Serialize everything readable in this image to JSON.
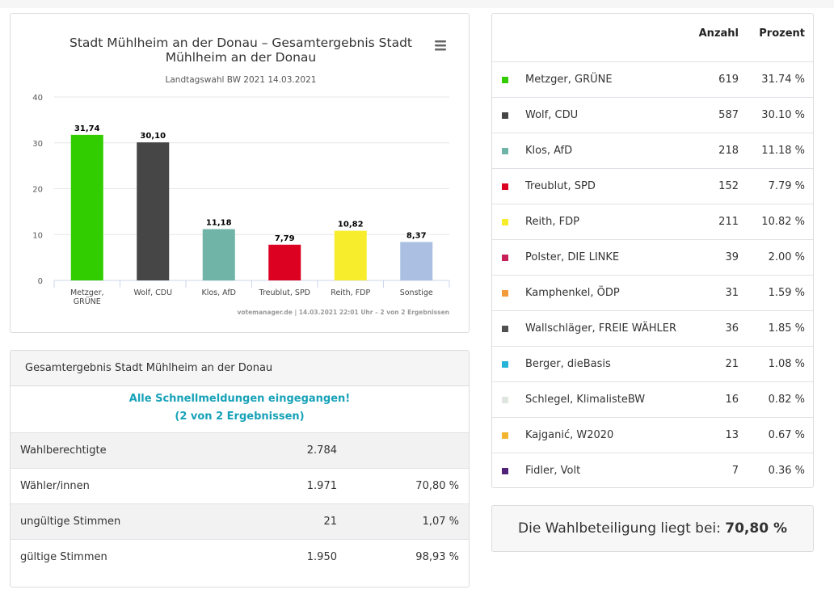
{
  "chart_data": {
    "type": "bar",
    "title": "Stadt Mühlheim an der Donau – Gesamtergebnis Stadt Mühlheim an der Donau",
    "title_lines": [
      "Stadt Mühlheim an der Donau – Gesamtergebnis Stadt",
      "Mühlheim an der Donau"
    ],
    "subtitle": "Landtagswahl BW 2021 14.03.2021",
    "credits": "votemanager.de | 14.03.2021 22:01 Uhr – 2 von 2 Ergebnissen",
    "categories": [
      [
        "Metzger,",
        "GRÜNE"
      ],
      [
        "Wolf, CDU"
      ],
      [
        "Klos, AfD"
      ],
      [
        "Treublut, SPD"
      ],
      [
        "Reith, FDP"
      ],
      [
        "Sonstige"
      ]
    ],
    "values": [
      31.74,
      30.1,
      11.18,
      7.79,
      10.82,
      8.37
    ],
    "labels": [
      "31,74",
      "30,10",
      "11,18",
      "7,79",
      "10,82",
      "8,37"
    ],
    "colors": [
      "#32cd00",
      "#464646",
      "#6fb4a6",
      "#dc0021",
      "#f8ed2c",
      "#aabfe1"
    ],
    "ylim": [
      0,
      40
    ],
    "yticks": [
      0,
      10,
      20,
      30,
      40
    ],
    "xlabel": "",
    "ylabel": "",
    "legend": "none",
    "menu_icon": "hamburger-menu-icon"
  },
  "summary": {
    "title": "Gesamtergebnis Stadt Mühlheim an der Donau",
    "notice_line1": "Alle Schnellmeldungen eingegangen!",
    "notice_line2": "(2 von 2 Ergebnissen)",
    "rows": [
      {
        "label": "Wahlberechtigte",
        "count": "2.784",
        "percent": ""
      },
      {
        "label": "Wähler/innen",
        "count": "1.971",
        "percent": "70,80 %"
      },
      {
        "label": "ungültige Stimmen",
        "count": "21",
        "percent": "1,07 %"
      },
      {
        "label": "gültige Stimmen",
        "count": "1.950",
        "percent": "98,93 %"
      }
    ]
  },
  "results": {
    "col_count": "Anzahl",
    "col_percent": "Prozent",
    "rows": [
      {
        "name": "Metzger, GRÜNE",
        "count": "619",
        "percent": "31.74 %",
        "color": "#32cd00"
      },
      {
        "name": "Wolf, CDU",
        "count": "587",
        "percent": "30.10 %",
        "color": "#464646"
      },
      {
        "name": "Klos, AfD",
        "count": "218",
        "percent": "11.18 %",
        "color": "#6fb4a6"
      },
      {
        "name": "Treublut, SPD",
        "count": "152",
        "percent": "7.79 %",
        "color": "#dc0021"
      },
      {
        "name": "Reith, FDP",
        "count": "211",
        "percent": "10.82 %",
        "color": "#f8ed2c"
      },
      {
        "name": "Polster, DIE LINKE",
        "count": "39",
        "percent": "2.00 %",
        "color": "#c8215a"
      },
      {
        "name": "Kamphenkel, ÖDP",
        "count": "31",
        "percent": "1.59 %",
        "color": "#f49b3c"
      },
      {
        "name": "Wallschläger, FREIE WÄHLER",
        "count": "36",
        "percent": "1.85 %",
        "color": "#505050"
      },
      {
        "name": "Berger, dieBasis",
        "count": "21",
        "percent": "1.08 %",
        "color": "#25b4d6"
      },
      {
        "name": "Schlegel, KlimalisteBW",
        "count": "16",
        "percent": "0.82 %",
        "color": "#dfe6df"
      },
      {
        "name": "Kajganić, W2020",
        "count": "13",
        "percent": "0.67 %",
        "color": "#f2b530"
      },
      {
        "name": "Fidler, Volt",
        "count": "7",
        "percent": "0.36 %",
        "color": "#502378"
      }
    ]
  },
  "turnout": {
    "label": "Die Wahlbeteiligung liegt bei:",
    "value": "70,80 %"
  }
}
